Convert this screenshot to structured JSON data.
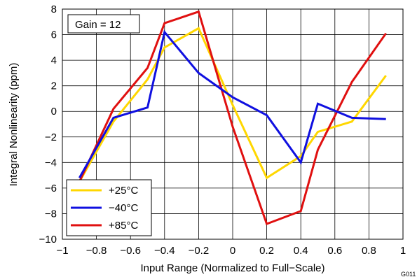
{
  "chart_data": {
    "type": "line",
    "xlabel": "Input Range (Normalized to Full−Scale)",
    "ylabel": "Integral Nonlinearity  (ppm)",
    "xlim": [
      -1,
      1
    ],
    "ylim": [
      -10,
      8
    ],
    "x_ticks": [
      -1,
      -0.8,
      -0.6,
      -0.4,
      -0.2,
      0,
      0.2,
      0.4,
      0.6,
      0.8,
      1
    ],
    "x_tick_labels": [
      "−1",
      "−0.8",
      "−0.6",
      "−0.4",
      "−0.2",
      "0",
      "0.2",
      "0.4",
      "0.6",
      "0.8",
      "1"
    ],
    "y_ticks": [
      -10,
      -8,
      -6,
      -4,
      -2,
      0,
      2,
      4,
      6,
      8
    ],
    "y_tick_labels": [
      "−10",
      "−8",
      "−6",
      "−4",
      "−2",
      "0",
      "2",
      "4",
      "6",
      "8"
    ],
    "grid": true,
    "annotation": "Gain = 12",
    "figure_id": "G011",
    "legend_position": "bottom-left",
    "series": [
      {
        "name": "+25°C",
        "color": "#ffd700",
        "x": [
          -0.9,
          -0.7,
          -0.5,
          -0.4,
          -0.2,
          0,
          0.2,
          0.4,
          0.5,
          0.7,
          0.9
        ],
        "y": [
          -5.5,
          -0.8,
          2.5,
          5.0,
          6.5,
          0.5,
          -5.2,
          -3.5,
          -1.6,
          -0.8,
          2.8
        ]
      },
      {
        "name": "−40°C",
        "color": "#1010e0",
        "x": [
          -0.9,
          -0.7,
          -0.5,
          -0.4,
          -0.2,
          0,
          0.2,
          0.4,
          0.5,
          0.7,
          0.9
        ],
        "y": [
          -5.2,
          -0.5,
          0.3,
          6.2,
          3.0,
          1.1,
          -0.3,
          -4.0,
          0.6,
          -0.5,
          -0.6
        ]
      },
      {
        "name": "+85°C",
        "color": "#e01010",
        "x": [
          -0.9,
          -0.7,
          -0.5,
          -0.4,
          -0.2,
          0,
          0.2,
          0.4,
          0.5,
          0.7,
          0.9
        ],
        "y": [
          -5.5,
          0.2,
          3.4,
          6.9,
          7.8,
          -1.2,
          -8.8,
          -7.8,
          -3.0,
          2.3,
          6.1
        ]
      }
    ]
  }
}
